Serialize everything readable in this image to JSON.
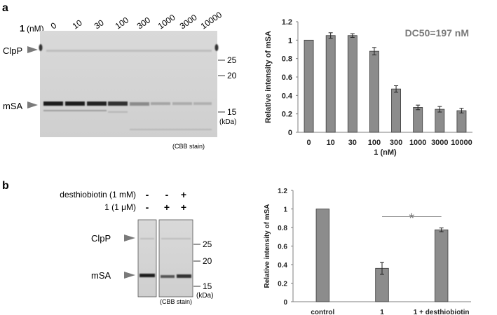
{
  "panel_a": {
    "letter": "a",
    "gel": {
      "compound_label": "1",
      "unit_label": "(nM)",
      "lanes": [
        "0",
        "10",
        "30",
        "100",
        "300",
        "1000",
        "3000",
        "10000"
      ],
      "band_labels": [
        "ClpP",
        "mSA"
      ],
      "markers": [
        "25",
        "20",
        "15"
      ],
      "kda_label": "(kDa)",
      "stain_label": "(CBB stain)"
    }
  },
  "panel_b": {
    "letter": "b",
    "gel": {
      "row_labels": [
        "desthiobiotin (1 mM)",
        "1 (1 μM)"
      ],
      "row1_signs": [
        "-",
        "-",
        "+"
      ],
      "row2_signs": [
        "-",
        "+",
        "+"
      ],
      "band_labels": [
        "ClpP",
        "mSA"
      ],
      "markers": [
        "25",
        "20",
        "15"
      ],
      "kda_label": "(kDa)",
      "stain_label": "(CBB stain)"
    }
  },
  "chart_data": [
    {
      "type": "bar",
      "categories": [
        "0",
        "10",
        "30",
        "100",
        "300",
        "1000",
        "3000",
        "10000"
      ],
      "values": [
        1.0,
        1.05,
        1.05,
        0.88,
        0.47,
        0.27,
        0.25,
        0.235
      ],
      "errors": [
        0.0,
        0.03,
        0.02,
        0.04,
        0.035,
        0.025,
        0.03,
        0.025
      ],
      "title": "",
      "annotation": "DC50=197 nM",
      "xlabel": "1 (nM)",
      "ylabel": "Relative intensity of mSA",
      "ylim": [
        0,
        1.2
      ],
      "yticks": [
        "0",
        "0.2",
        "0.4",
        "0.6",
        "0.8",
        "1",
        "1.2"
      ],
      "grid": false,
      "bar_color": "#8c8c8c"
    },
    {
      "type": "bar",
      "categories": [
        "control",
        "1",
        "1 + desthiobiotin"
      ],
      "values": [
        1.0,
        0.36,
        0.775
      ],
      "errors": [
        0.0,
        0.065,
        0.02
      ],
      "title": "",
      "annotation": "*",
      "xlabel": "",
      "ylabel": "Relative intensity of mSA",
      "ylim": [
        0,
        1.2
      ],
      "yticks": [
        "0",
        "0.2",
        "0.4",
        "0.6",
        "0.8",
        "1",
        "1.2"
      ],
      "grid": false,
      "bar_color": "#8c8c8c"
    }
  ]
}
